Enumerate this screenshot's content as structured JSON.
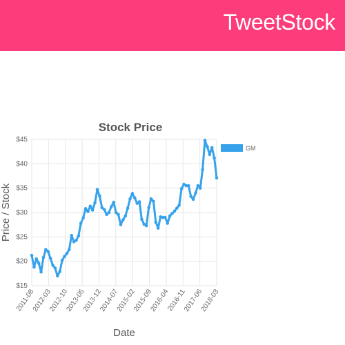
{
  "header": {
    "brand": "TweetStock",
    "background": "#fd3d7b"
  },
  "chart_data": {
    "type": "line",
    "title": "Stock Price",
    "xlabel": "Date",
    "ylabel": "Price / Stock",
    "ylim": [
      15,
      45
    ],
    "yticks": [
      15,
      20,
      25,
      30,
      35,
      40,
      45
    ],
    "ytick_labels": [
      "$15",
      "$20",
      "$25",
      "$30",
      "$35",
      "$40",
      "$45"
    ],
    "xtick_labels": [
      "2011-08",
      "2012-03",
      "2012-10",
      "2013-05",
      "2013-12",
      "2014-07",
      "2015-02",
      "2015-09",
      "2016-04",
      "2016-11",
      "2017-06",
      "2018-03"
    ],
    "grid": true,
    "legend_position": "top-right",
    "series": [
      {
        "name": "GM",
        "color": "#36a2eb",
        "values": [
          21.2,
          18.8,
          20.5,
          19.6,
          17.8,
          20.8,
          22.4,
          22.0,
          20.6,
          19.2,
          18.6,
          17.0,
          17.9,
          20.2,
          21.0,
          21.6,
          22.4,
          25.3,
          24.0,
          24.3,
          25.2,
          27.8,
          28.9,
          30.8,
          30.2,
          31.3,
          30.5,
          32.0,
          34.7,
          33.4,
          31.0,
          30.6,
          29.6,
          30.0,
          31.2,
          32.1,
          30.0,
          29.6,
          27.5,
          28.5,
          29.3,
          30.9,
          32.8,
          33.9,
          33.0,
          31.9,
          32.2,
          28.6,
          27.6,
          27.3,
          31.0,
          32.8,
          32.3,
          28.0,
          26.8,
          29.1,
          29.0,
          29.0,
          27.8,
          29.3,
          29.8,
          30.3,
          30.9,
          31.5,
          34.9,
          35.8,
          35.5,
          35.5,
          33.3,
          32.7,
          34.0,
          35.5,
          35.0,
          38.8,
          44.8,
          43.5,
          41.9,
          43.3,
          41.2,
          37.1
        ]
      }
    ]
  }
}
